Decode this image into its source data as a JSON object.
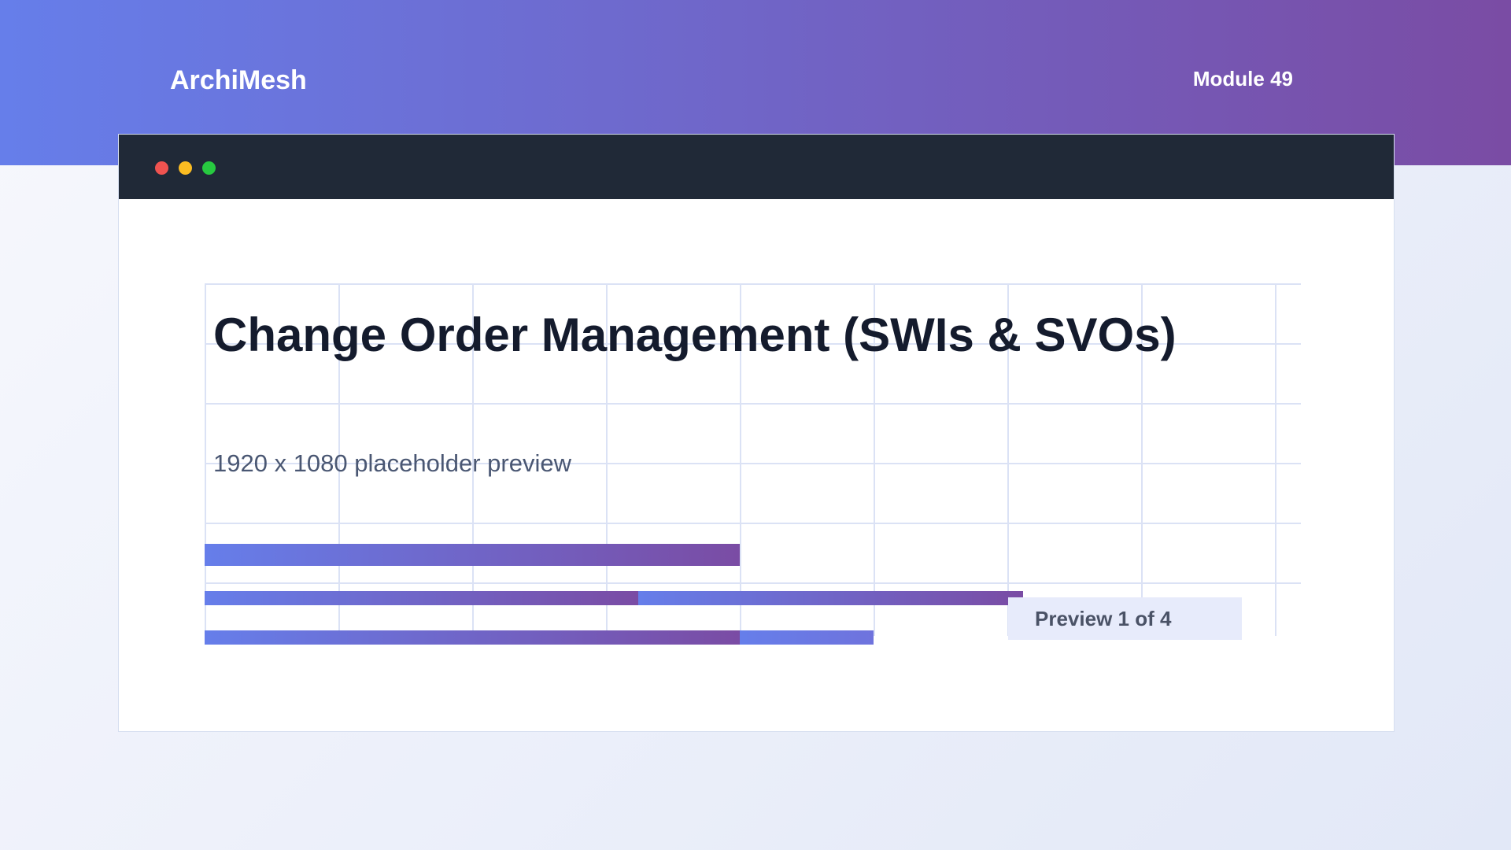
{
  "header": {
    "brand": "ArchiMesh",
    "module": "Module 49"
  },
  "window": {
    "controls": [
      "close-dot",
      "minimize-dot",
      "maximize-dot"
    ],
    "colors": {
      "close": "#ef5350",
      "minimize": "#fbbc22",
      "maximize": "#27c940"
    }
  },
  "slide": {
    "title": "Change Order Management (SWIs & SVOs)",
    "subtitle": "1920 x 1080 placeholder preview",
    "preview_label": "Preview 1 of 4",
    "progress": [
      0.48,
      0.65,
      0.5
    ]
  },
  "theme": {
    "accent_start": "#667eea",
    "accent_end": "#7a4ca4"
  }
}
